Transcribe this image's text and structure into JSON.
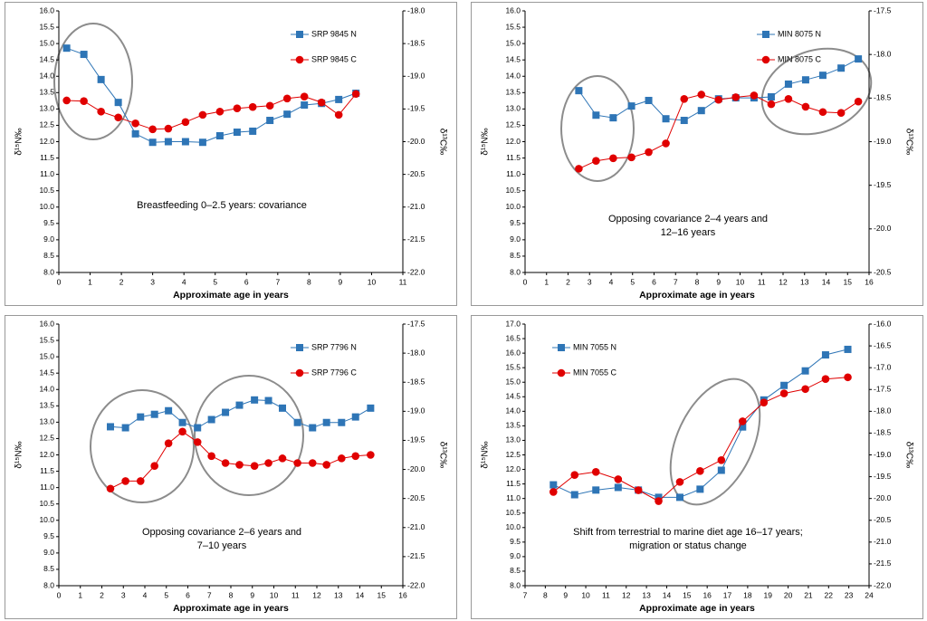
{
  "chart_data": [
    {
      "type": "line",
      "annotation": [
        "Breastfeeding 0–2.5 years: covariance"
      ],
      "x_label": "Approximate age in years",
      "y_label": "δ¹⁵N‰",
      "y2_label": "δ¹³C‰",
      "x": [
        0.25,
        0.8,
        1.35,
        1.9,
        2.45,
        3.0,
        3.5,
        4.05,
        4.6,
        5.15,
        5.7,
        6.2,
        6.75,
        7.3,
        7.85,
        8.4,
        8.95,
        9.5
      ],
      "xlim": [
        0,
        11
      ],
      "xticks": [
        0,
        1,
        2,
        3,
        4,
        5,
        6,
        7,
        8,
        9,
        10,
        11
      ],
      "ylim": [
        8,
        16
      ],
      "yticks": [
        {
          "value": 8,
          "label": "8.0"
        },
        {
          "value": 8.5,
          "label": "8.5"
        },
        {
          "value": 9,
          "label": "9.0"
        },
        {
          "value": 9.5,
          "label": "9.5"
        },
        {
          "value": 10,
          "label": "10.0"
        },
        {
          "value": 10.5,
          "label": "10.5"
        },
        {
          "value": 11,
          "label": "11.0"
        },
        {
          "value": 11.5,
          "label": "11.5"
        },
        {
          "value": 12,
          "label": "12.0"
        },
        {
          "value": 12.5,
          "label": "12.5"
        },
        {
          "value": 13,
          "label": "13.0"
        },
        {
          "value": 13.5,
          "label": "13.5"
        },
        {
          "value": 14,
          "label": "14.0"
        },
        {
          "value": 14.5,
          "label": "14.5"
        },
        {
          "value": 15,
          "label": "15.0"
        },
        {
          "value": 15.5,
          "label": "15.5"
        },
        {
          "value": 16,
          "label": "16.0"
        }
      ],
      "y2lim": [
        -22,
        -18
      ],
      "y2ticks": [
        {
          "value": -22,
          "label": "-22.0"
        },
        {
          "value": -21.5,
          "label": "-21.5"
        },
        {
          "value": -21,
          "label": "-21.0"
        },
        {
          "value": -20.5,
          "label": "-20.5"
        },
        {
          "value": -20,
          "label": "-20.0"
        },
        {
          "value": -19.5,
          "label": "-19.5"
        },
        {
          "value": -19,
          "label": "-19.0"
        },
        {
          "value": -18.5,
          "label": "-18.5"
        },
        {
          "value": -18,
          "label": "-18.0"
        }
      ],
      "legend": "upper right",
      "series": [
        {
          "name": "SRP 9845 N",
          "color": "#2e75b6",
          "marker": "square",
          "values": [
            14.86,
            14.67,
            13.9,
            13.2,
            12.24,
            11.98,
            12.0,
            12.0,
            11.98,
            12.18,
            12.29,
            12.32,
            12.65,
            12.84,
            13.12,
            13.17,
            13.29,
            13.48
          ]
        },
        {
          "name": "SRP 9845 C",
          "color": "#e00000",
          "marker": "circle",
          "axis": "y2",
          "values": [
            -19.37,
            -19.38,
            -19.54,
            -19.63,
            -19.72,
            -19.81,
            -19.8,
            -19.7,
            -19.59,
            -19.54,
            -19.49,
            -19.47,
            -19.45,
            -19.34,
            -19.31,
            -19.4,
            -19.59,
            -19.27
          ]
        }
      ]
    },
    {
      "type": "line",
      "annotation": [
        "Opposing covariance 2–4 years and",
        "12–16 years"
      ],
      "x_label": "Approximate age in years",
      "y_label": "δ¹⁵N‰",
      "y2_label": "δ¹³C‰",
      "x": [
        2.5,
        3.3,
        4.1,
        4.95,
        5.75,
        6.55,
        7.4,
        8.2,
        9.0,
        9.8,
        10.65,
        11.45,
        12.25,
        13.05,
        13.85,
        14.7,
        15.5
      ],
      "xlim": [
        0,
        16
      ],
      "xticks": [
        0,
        1,
        2,
        3,
        4,
        5,
        6,
        7,
        8,
        9,
        10,
        11,
        12,
        13,
        14,
        15,
        16
      ],
      "ylim": [
        8,
        16
      ],
      "yticks": [
        {
          "value": 8,
          "label": "8.0"
        },
        {
          "value": 8.5,
          "label": "8.5"
        },
        {
          "value": 9,
          "label": "9.0"
        },
        {
          "value": 9.5,
          "label": "9.5"
        },
        {
          "value": 10,
          "label": "10.0"
        },
        {
          "value": 10.5,
          "label": "10.5"
        },
        {
          "value": 11,
          "label": "11.0"
        },
        {
          "value": 11.5,
          "label": "11.5"
        },
        {
          "value": 12,
          "label": "12.0"
        },
        {
          "value": 12.5,
          "label": "12.5"
        },
        {
          "value": 13,
          "label": "13.0"
        },
        {
          "value": 13.5,
          "label": "13.5"
        },
        {
          "value": 14,
          "label": "14.0"
        },
        {
          "value": 14.5,
          "label": "14.5"
        },
        {
          "value": 15,
          "label": "15.0"
        },
        {
          "value": 15.5,
          "label": "15.5"
        },
        {
          "value": 16,
          "label": "16.0"
        }
      ],
      "y2lim": [
        -20.5,
        -17.5
      ],
      "y2ticks": [
        {
          "value": -20.5,
          "label": "-20.5"
        },
        {
          "value": -20,
          "label": "-20.0"
        },
        {
          "value": -19.5,
          "label": "-19.5"
        },
        {
          "value": -19,
          "label": "-19.0"
        },
        {
          "value": -18.5,
          "label": "-18.5"
        },
        {
          "value": -18,
          "label": "-18.0"
        },
        {
          "value": -17.5,
          "label": "-17.5"
        }
      ],
      "legend": "upper right",
      "series": [
        {
          "name": "MIN 8075 N",
          "color": "#2e75b6",
          "marker": "square",
          "values": [
            13.56,
            12.81,
            12.73,
            13.09,
            13.26,
            12.7,
            12.65,
            12.95,
            13.31,
            13.34,
            13.34,
            13.37,
            13.76,
            13.89,
            14.03,
            14.25,
            14.53
          ]
        },
        {
          "name": "MIN 8075 C",
          "color": "#e00000",
          "marker": "circle",
          "axis": "y2",
          "values": [
            -19.31,
            -19.22,
            -19.19,
            -19.18,
            -19.12,
            -19.02,
            -18.51,
            -18.46,
            -18.52,
            -18.49,
            -18.47,
            -18.57,
            -18.51,
            -18.6,
            -18.66,
            -18.67,
            -18.54
          ]
        }
      ]
    },
    {
      "type": "line",
      "annotation": [
        "Opposing covariance 2–6 years and",
        "7–10 years"
      ],
      "x_label": "Approximate age in years",
      "y_label": "δ¹⁵N‰",
      "y2_label": "δ¹³C‰",
      "x": [
        2.4,
        3.1,
        3.8,
        4.45,
        5.1,
        5.75,
        6.45,
        7.1,
        7.75,
        8.4,
        9.1,
        9.75,
        10.4,
        11.1,
        11.8,
        12.45,
        13.15,
        13.8,
        14.5
      ],
      "xlim": [
        0,
        16
      ],
      "xticks": [
        0,
        1,
        2,
        3,
        4,
        5,
        6,
        7,
        8,
        9,
        10,
        11,
        12,
        13,
        14,
        15,
        16
      ],
      "ylim": [
        8,
        16
      ],
      "yticks": [
        {
          "value": 8,
          "label": "8.0"
        },
        {
          "value": 8.5,
          "label": "8.5"
        },
        {
          "value": 9,
          "label": "9.0"
        },
        {
          "value": 9.5,
          "label": "9.5"
        },
        {
          "value": 10,
          "label": "10.0"
        },
        {
          "value": 10.5,
          "label": "10.5"
        },
        {
          "value": 11,
          "label": "11.0"
        },
        {
          "value": 11.5,
          "label": "11.5"
        },
        {
          "value": 12,
          "label": "12.0"
        },
        {
          "value": 12.5,
          "label": "12.5"
        },
        {
          "value": 13,
          "label": "13.0"
        },
        {
          "value": 13.5,
          "label": "13.5"
        },
        {
          "value": 14,
          "label": "14.0"
        },
        {
          "value": 14.5,
          "label": "14.5"
        },
        {
          "value": 15,
          "label": "15.0"
        },
        {
          "value": 15.5,
          "label": "15.5"
        },
        {
          "value": 16,
          "label": "16.0"
        }
      ],
      "y2lim": [
        -22,
        -17.5
      ],
      "y2ticks": [
        {
          "value": -22,
          "label": "-22.0"
        },
        {
          "value": -21.5,
          "label": "-21.5"
        },
        {
          "value": -21,
          "label": "-21.0"
        },
        {
          "value": -20.5,
          "label": "-20.5"
        },
        {
          "value": -20,
          "label": "-20.0"
        },
        {
          "value": -19.5,
          "label": "-19.5"
        },
        {
          "value": -19,
          "label": "-19.0"
        },
        {
          "value": -18.5,
          "label": "-18.5"
        },
        {
          "value": -18,
          "label": "-18.0"
        },
        {
          "value": -17.5,
          "label": "-17.5"
        }
      ],
      "legend": "upper right",
      "series": [
        {
          "name": "SRP 7796 N",
          "color": "#2e75b6",
          "marker": "square",
          "values": [
            12.86,
            12.83,
            13.16,
            13.24,
            13.35,
            12.99,
            12.83,
            13.08,
            13.3,
            13.52,
            13.68,
            13.66,
            13.43,
            12.99,
            12.83,
            12.99,
            12.99,
            13.16,
            13.43
          ]
        },
        {
          "name": "SRP 7796 C",
          "color": "#e00000",
          "marker": "circle",
          "axis": "y2",
          "values": [
            -20.33,
            -20.2,
            -20.2,
            -19.94,
            -19.55,
            -19.35,
            -19.53,
            -19.77,
            -19.89,
            -19.92,
            -19.94,
            -19.89,
            -19.81,
            -19.89,
            -19.89,
            -19.92,
            -19.81,
            -19.77,
            -19.75
          ]
        }
      ]
    },
    {
      "type": "line",
      "annotation": [
        "Shift from terrestrial to marine diet age 16–17 years;",
        "migration or status change"
      ],
      "x_label": "Approximate age in years",
      "y_label": "δ¹⁵N‰",
      "y2_label": "δ¹³C‰",
      "x": [
        8.4,
        9.45,
        10.5,
        11.6,
        12.6,
        13.6,
        14.65,
        15.65,
        16.7,
        17.75,
        18.8,
        19.8,
        20.85,
        21.85,
        22.95
      ],
      "xlim": [
        7,
        24
      ],
      "xticks": [
        7,
        8,
        9,
        10,
        11,
        12,
        13,
        14,
        15,
        16,
        17,
        18,
        19,
        20,
        21,
        22,
        23,
        24
      ],
      "ylim": [
        8,
        17
      ],
      "yticks": [
        {
          "value": 8,
          "label": "8.0"
        },
        {
          "value": 8.5,
          "label": "8.5"
        },
        {
          "value": 9,
          "label": "9.0"
        },
        {
          "value": 9.5,
          "label": "9.5"
        },
        {
          "value": 10,
          "label": "10.0"
        },
        {
          "value": 10.5,
          "label": "10.5"
        },
        {
          "value": 11,
          "label": "11.0"
        },
        {
          "value": 11.5,
          "label": "11.5"
        },
        {
          "value": 12,
          "label": "12.0"
        },
        {
          "value": 12.5,
          "label": "12.5"
        },
        {
          "value": 13,
          "label": "13.0"
        },
        {
          "value": 13.5,
          "label": "13.5"
        },
        {
          "value": 14,
          "label": "14.0"
        },
        {
          "value": 14.5,
          "label": "14.5"
        },
        {
          "value": 15,
          "label": "15.0"
        },
        {
          "value": 15.5,
          "label": "15.5"
        },
        {
          "value": 16,
          "label": "16.0"
        },
        {
          "value": 16.5,
          "label": "16.5"
        },
        {
          "value": 17,
          "label": "17.0"
        }
      ],
      "y2lim": [
        -22,
        -16
      ],
      "y2ticks": [
        {
          "value": -22,
          "label": "-22.0"
        },
        {
          "value": -21.5,
          "label": "-21.5"
        },
        {
          "value": -21,
          "label": "-21.0"
        },
        {
          "value": -20.5,
          "label": "-20.5"
        },
        {
          "value": -20,
          "label": "-20.0"
        },
        {
          "value": -19.5,
          "label": "-19.5"
        },
        {
          "value": -19,
          "label": "-19.0"
        },
        {
          "value": -18.5,
          "label": "-18.5"
        },
        {
          "value": -18,
          "label": "-18.0"
        },
        {
          "value": -17.5,
          "label": "-17.5"
        },
        {
          "value": -17,
          "label": "-17.0"
        },
        {
          "value": -16.5,
          "label": "-16.5"
        },
        {
          "value": -16,
          "label": "-16.0"
        }
      ],
      "legend": "upper left",
      "series": [
        {
          "name": "MIN 7055 N",
          "color": "#2e75b6",
          "marker": "square",
          "values": [
            11.47,
            11.13,
            11.29,
            11.38,
            11.29,
            11.04,
            11.04,
            11.32,
            11.97,
            13.46,
            14.39,
            14.89,
            15.39,
            15.94,
            16.13
          ]
        },
        {
          "name": "MIN 7055 C",
          "color": "#e00000",
          "marker": "circle",
          "axis": "y2",
          "values": [
            -19.85,
            -19.46,
            -19.39,
            -19.56,
            -19.81,
            -20.06,
            -19.62,
            -19.37,
            -19.12,
            -18.23,
            -17.8,
            -17.59,
            -17.49,
            -17.26,
            -17.22
          ]
        }
      ]
    }
  ]
}
